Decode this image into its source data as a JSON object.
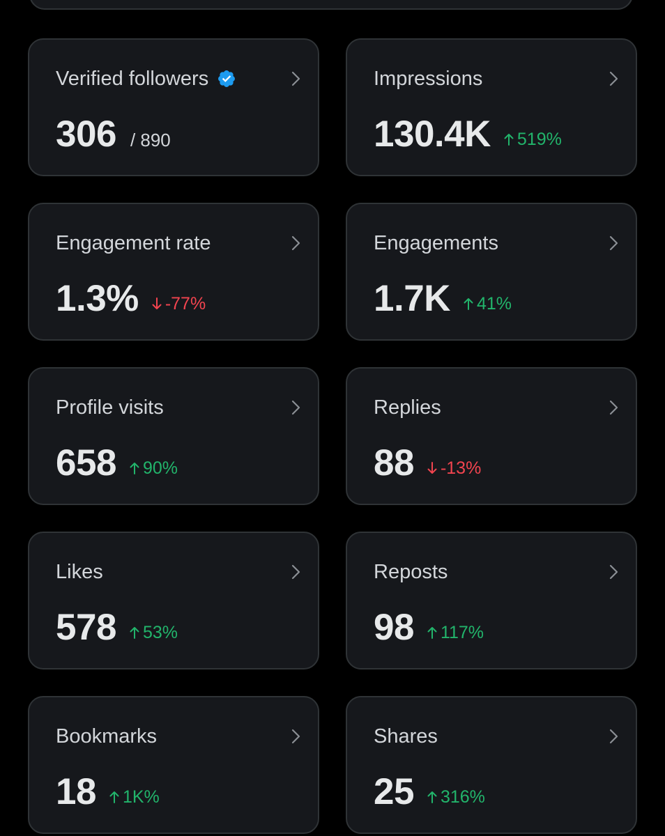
{
  "colors": {
    "background": "#000000",
    "card": "#16181c",
    "card_border": "#2f3336",
    "label": "#d3d6da",
    "value": "#e7e9ea",
    "positive": "#22b46b",
    "negative": "#f2444f",
    "verified": "#1d9bf0"
  },
  "metrics": [
    {
      "label": "Verified followers",
      "value": "306",
      "total": "/ 890",
      "change": "",
      "direction": "none",
      "verified_badge": true
    },
    {
      "label": "Impressions",
      "value": "130.4K",
      "total": "",
      "change": "519%",
      "direction": "up",
      "verified_badge": false
    },
    {
      "label": "Engagement rate",
      "value": "1.3%",
      "total": "",
      "change": "-77%",
      "direction": "down",
      "verified_badge": false
    },
    {
      "label": "Engagements",
      "value": "1.7K",
      "total": "",
      "change": "41%",
      "direction": "up",
      "verified_badge": false
    },
    {
      "label": "Profile visits",
      "value": "658",
      "total": "",
      "change": "90%",
      "direction": "up",
      "verified_badge": false
    },
    {
      "label": "Replies",
      "value": "88",
      "total": "",
      "change": "-13%",
      "direction": "down",
      "verified_badge": false
    },
    {
      "label": "Likes",
      "value": "578",
      "total": "",
      "change": "53%",
      "direction": "up",
      "verified_badge": false
    },
    {
      "label": "Reposts",
      "value": "98",
      "total": "",
      "change": "117%",
      "direction": "up",
      "verified_badge": false
    },
    {
      "label": "Bookmarks",
      "value": "18",
      "total": "",
      "change": "1K%",
      "direction": "up",
      "verified_badge": false
    },
    {
      "label": "Shares",
      "value": "25",
      "total": "",
      "change": "316%",
      "direction": "up",
      "verified_badge": false
    }
  ]
}
